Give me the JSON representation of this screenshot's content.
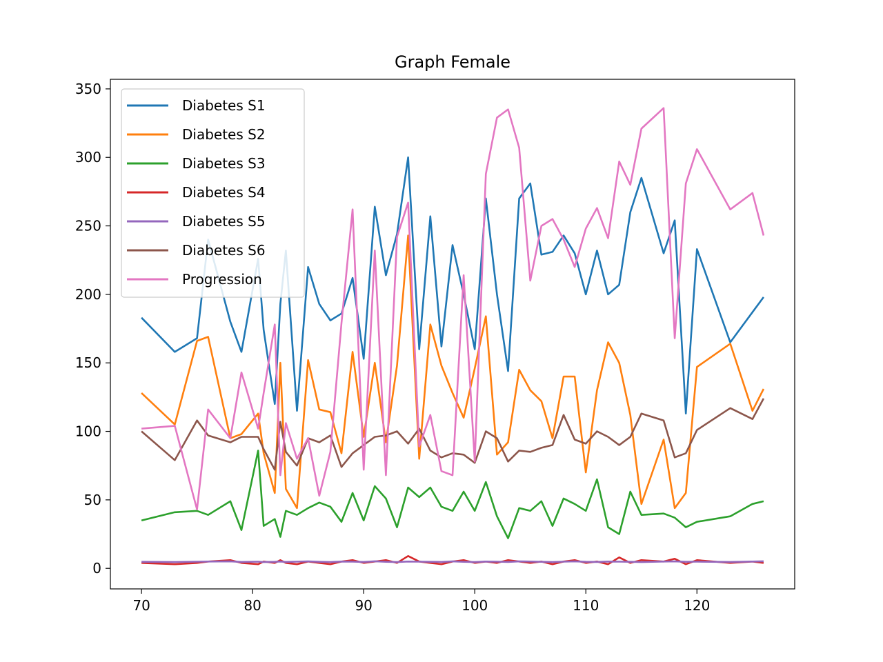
{
  "chart_data": {
    "type": "line",
    "title": "Graph Female",
    "xlabel": "",
    "ylabel": "",
    "xlim": [
      67.2,
      128.8
    ],
    "ylim": [
      -15,
      357
    ],
    "xticks": [
      70,
      80,
      90,
      100,
      110,
      120
    ],
    "yticks": [
      0,
      50,
      100,
      150,
      200,
      250,
      300,
      350
    ],
    "grid": false,
    "legend": "top-left",
    "x": [
      70,
      73,
      75,
      76,
      78,
      79,
      80.5,
      81,
      82,
      82.5,
      83,
      84,
      85,
      86,
      87,
      88,
      89,
      90,
      91,
      92,
      93,
      94,
      95,
      96,
      97,
      98,
      99,
      100,
      101,
      102,
      103,
      104,
      105,
      106,
      107,
      108,
      109,
      110,
      111,
      112,
      113,
      114,
      115,
      117,
      118,
      119,
      120,
      123,
      125,
      126
    ],
    "series": [
      {
        "name": "Diabetes S1",
        "color": "#1f77b4",
        "values": [
          183,
          158,
          168,
          240,
          180,
          158,
          226,
          174,
          120,
          193,
          232,
          115,
          220,
          193,
          181,
          186,
          212,
          153,
          264,
          214,
          244,
          300,
          160,
          257,
          162,
          236,
          200,
          160,
          270,
          200,
          144,
          270,
          281,
          229,
          231,
          243,
          230,
          200,
          232,
          200,
          207,
          260,
          285,
          230,
          254,
          113,
          233,
          165,
          187,
          198
        ]
      },
      {
        "name": "Diabetes S2",
        "color": "#ff7f0e",
        "values": [
          128,
          105,
          166,
          169,
          95,
          98,
          113,
          84,
          55,
          150,
          58,
          44,
          152,
          116,
          114,
          84,
          158,
          96,
          150,
          92,
          148,
          243,
          80,
          178,
          148,
          128,
          110,
          146,
          184,
          83,
          92,
          145,
          130,
          122,
          95,
          140,
          140,
          70,
          130,
          165,
          150,
          112,
          47,
          94,
          44,
          55,
          147,
          164,
          115,
          131
        ]
      },
      {
        "name": "Diabetes S3",
        "color": "#2ca02c",
        "values": [
          35,
          41,
          42,
          39,
          49,
          28,
          86,
          31,
          36,
          23,
          42,
          39,
          44,
          48,
          45,
          34,
          55,
          35,
          60,
          51,
          30,
          59,
          52,
          59,
          45,
          42,
          56,
          42,
          63,
          38,
          22,
          44,
          42,
          49,
          31,
          51,
          47,
          42,
          65,
          30,
          25,
          56,
          39,
          40,
          37,
          30,
          34,
          38,
          47,
          49
        ]
      },
      {
        "name": "Diabetes S4",
        "color": "#d62728",
        "values": [
          4,
          3,
          4,
          5,
          6,
          4,
          3,
          5,
          4,
          6,
          4,
          3,
          5,
          4,
          3,
          5,
          6,
          4,
          5,
          6,
          4,
          9,
          5,
          4,
          3,
          5,
          6,
          4,
          5,
          4,
          6,
          5,
          4,
          5,
          3,
          5,
          6,
          4,
          5,
          3,
          8,
          4,
          6,
          5,
          7,
          3,
          6,
          4,
          5,
          4
        ]
      },
      {
        "name": "Diabetes S5",
        "color": "#9467bd",
        "values": [
          4.8,
          4.6,
          4.9,
          5.0,
          5.1,
          4.7,
          4.9,
          4.6,
          4.8,
          5.0,
          4.7,
          4.9,
          5.1,
          4.8,
          4.6,
          5.0,
          4.9,
          4.7,
          5.2,
          4.8,
          4.6,
          5.0,
          4.9,
          4.8,
          4.7,
          5.1,
          4.8,
          4.6,
          5.0,
          4.9,
          4.7,
          5.1,
          5.0,
          4.8,
          4.6,
          4.9,
          5.1,
          4.8,
          4.7,
          5.0,
          4.9,
          4.8,
          4.6,
          5.0,
          5.1,
          4.8,
          4.9,
          4.7,
          5.0,
          5.2
        ]
      },
      {
        "name": "Diabetes S6",
        "color": "#8c564b",
        "values": [
          100,
          79,
          108,
          97,
          92,
          96,
          96,
          87,
          72,
          107,
          85,
          75,
          95,
          92,
          97,
          74,
          84,
          90,
          96,
          97,
          100,
          91,
          102,
          86,
          81,
          84,
          83,
          77,
          100,
          95,
          78,
          86,
          85,
          88,
          90,
          112,
          94,
          91,
          100,
          96,
          90,
          96,
          113,
          108,
          81,
          84,
          101,
          117,
          109,
          124
        ]
      },
      {
        "name": "Progression",
        "color": "#e377c2",
        "values": [
          102,
          104,
          43,
          116,
          95,
          143,
          102,
          128,
          178,
          68,
          106,
          80,
          95,
          53,
          85,
          179,
          262,
          72,
          232,
          68,
          242,
          267,
          89,
          112,
          71,
          68,
          214,
          78,
          288,
          329,
          335,
          307,
          210,
          250,
          255,
          240,
          220,
          248,
          263,
          241,
          297,
          280,
          321,
          336,
          168,
          281,
          306,
          262,
          274,
          243
        ]
      }
    ]
  }
}
